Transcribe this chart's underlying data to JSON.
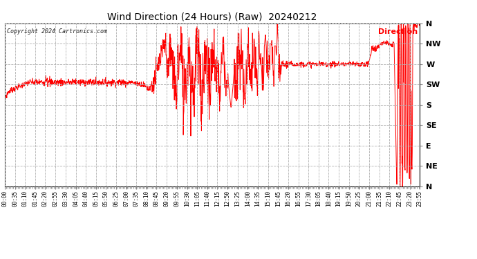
{
  "title": "Wind Direction (24 Hours) (Raw)  20240212",
  "copyright": "Copyright 2024 Cartronics.com",
  "legend_label": "Direction",
  "line_color": "#ff0000",
  "background_color": "#ffffff",
  "grid_color": "#b0b0b0",
  "ytick_labels": [
    "N",
    "NW",
    "W",
    "SW",
    "S",
    "SE",
    "E",
    "NE",
    "N"
  ],
  "ytick_values": [
    360,
    315,
    270,
    225,
    180,
    135,
    90,
    45,
    0
  ],
  "ylim": [
    0,
    360
  ],
  "time_labels": [
    "00:00",
    "00:35",
    "01:10",
    "01:45",
    "02:20",
    "02:55",
    "03:30",
    "04:05",
    "04:40",
    "05:15",
    "05:50",
    "06:25",
    "07:00",
    "07:35",
    "08:10",
    "08:45",
    "09:20",
    "09:55",
    "10:30",
    "11:05",
    "11:40",
    "12:15",
    "12:50",
    "13:25",
    "14:00",
    "14:35",
    "15:10",
    "15:45",
    "16:20",
    "16:55",
    "17:30",
    "18:05",
    "18:40",
    "19:15",
    "19:50",
    "20:25",
    "21:00",
    "21:35",
    "22:10",
    "22:45",
    "23:20",
    "23:55"
  ]
}
